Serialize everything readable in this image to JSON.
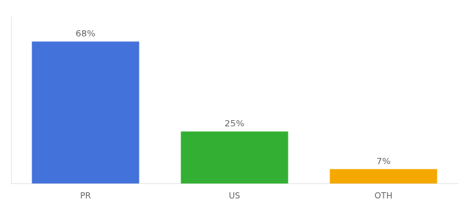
{
  "chart_data": {
    "type": "bar",
    "categories": [
      "PR",
      "US",
      "OTH"
    ],
    "values": [
      68,
      25,
      7
    ],
    "value_labels": [
      "68%",
      "25%",
      "7%"
    ],
    "colors": [
      "#4472db",
      "#33b033",
      "#f5a800"
    ],
    "ylim": [
      0,
      80
    ],
    "grid": false,
    "data_labels": true,
    "tick_labels": "x"
  }
}
